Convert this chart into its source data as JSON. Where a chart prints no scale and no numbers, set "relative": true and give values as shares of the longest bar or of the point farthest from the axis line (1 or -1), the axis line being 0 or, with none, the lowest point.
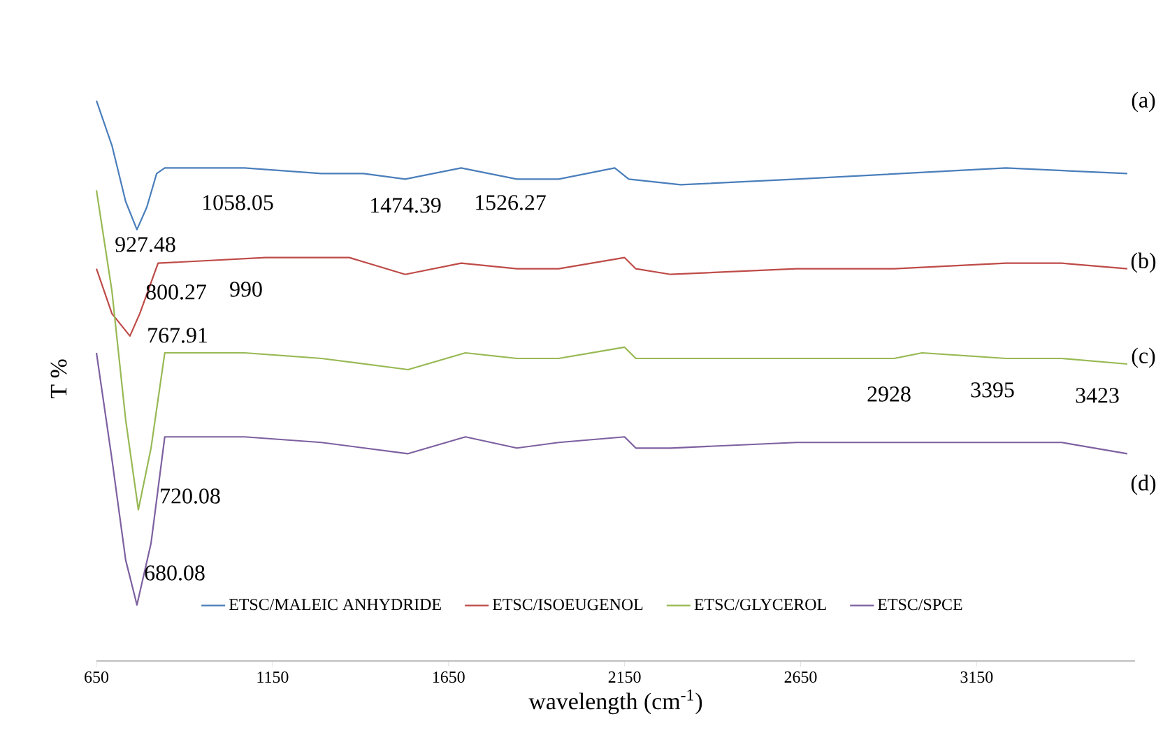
{
  "chart_data": {
    "type": "line",
    "relative": true,
    "xlabel": "wavelength (cm$^{-1}$)",
    "ylabel": "T %",
    "xlim": [
      650,
      3600
    ],
    "xticks": [
      650,
      1150,
      1650,
      2150,
      2650,
      3150
    ],
    "tick_labels": "x",
    "grid": false,
    "legend": "bottom",
    "marker": "none",
    "line_style": "solid",
    "annotations": [
      "(a)",
      "(b)",
      "(c)",
      "(d)",
      "927.48",
      "1058.05",
      "1474.39",
      "1526.27",
      "800.27",
      "990",
      "767.91",
      "720.08",
      "680.08",
      "2928",
      "3395",
      "3423"
    ],
    "series": [
      {
        "name": "ETSC/MALEIC ANHYDRIDE",
        "color": "#4a7ebb",
        "x": [
          650,
          694,
          733,
          765,
          793,
          821,
          844,
          932,
          1071,
          1289,
          1408,
          1527,
          1686,
          1844,
          1963,
          2122,
          2162,
          2309,
          2638,
          3233,
          3578
        ],
        "values": [
          1.0,
          0.92,
          0.82,
          0.77,
          0.81,
          0.87,
          0.88,
          0.88,
          0.88,
          0.87,
          0.87,
          0.86,
          0.88,
          0.86,
          0.86,
          0.88,
          0.86,
          0.85,
          0.86,
          0.88,
          0.87
        ]
      },
      {
        "name": "ETSC/ISOEUGENOL",
        "color": "#be4b48",
        "x": [
          650,
          694,
          745,
          773,
          825,
          1130,
          1368,
          1527,
          1686,
          1844,
          1963,
          2150,
          2182,
          2281,
          2638,
          2916,
          3233,
          3392,
          3578
        ],
        "values": [
          0.7,
          0.62,
          0.58,
          0.62,
          0.71,
          0.72,
          0.72,
          0.69,
          0.71,
          0.7,
          0.7,
          0.72,
          0.7,
          0.69,
          0.7,
          0.7,
          0.71,
          0.71,
          0.7
        ]
      },
      {
        "name": "ETSC/GLYCEROL",
        "color": "#98b954",
        "x": [
          650,
          694,
          733,
          769,
          805,
          844,
          1071,
          1289,
          1535,
          1698,
          1844,
          1963,
          2150,
          2182,
          2281,
          2638,
          2916,
          2995,
          3233,
          3392,
          3578
        ],
        "values": [
          0.84,
          0.66,
          0.43,
          0.27,
          0.38,
          0.55,
          0.55,
          0.54,
          0.52,
          0.55,
          0.54,
          0.54,
          0.56,
          0.54,
          0.54,
          0.54,
          0.54,
          0.55,
          0.54,
          0.54,
          0.53
        ]
      },
      {
        "name": "ETSC/SPCE",
        "color": "#7d60a0",
        "x": [
          650,
          694,
          733,
          765,
          805,
          844,
          1071,
          1289,
          1535,
          1698,
          1844,
          1963,
          2150,
          2182,
          2281,
          2638,
          2916,
          3233,
          3392,
          3578
        ],
        "values": [
          0.55,
          0.36,
          0.18,
          0.1,
          0.21,
          0.4,
          0.4,
          0.39,
          0.37,
          0.4,
          0.38,
          0.39,
          0.4,
          0.38,
          0.38,
          0.39,
          0.39,
          0.39,
          0.39,
          0.37
        ]
      }
    ]
  }
}
